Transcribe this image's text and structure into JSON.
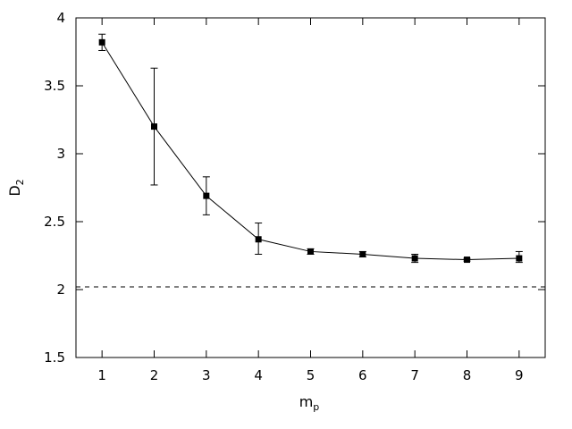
{
  "chart_data": {
    "type": "line",
    "xlabel": {
      "main": "m",
      "sub": "p"
    },
    "ylabel": {
      "main": "D",
      "sub": "2"
    },
    "xlim": [
      0.5,
      9.5
    ],
    "ylim": [
      1.5,
      4
    ],
    "x_ticks": [
      1,
      2,
      3,
      4,
      5,
      6,
      7,
      8,
      9
    ],
    "y_ticks": [
      1.5,
      2,
      2.5,
      3,
      3.5,
      4
    ],
    "y_tick_labels": [
      "1.5",
      "2",
      "2.5",
      "3",
      "3.5",
      "4"
    ],
    "grid": false,
    "marker": "square",
    "series": [
      {
        "x": [
          1,
          2,
          3,
          4,
          5,
          6,
          7,
          8,
          9
        ],
        "y": [
          3.82,
          3.2,
          2.69,
          2.37,
          2.28,
          2.26,
          2.23,
          2.22,
          2.23
        ],
        "yerr_low": [
          3.76,
          2.77,
          2.55,
          2.26,
          2.26,
          2.24,
          2.2,
          2.21,
          2.2
        ],
        "yerr_high": [
          3.88,
          3.63,
          2.83,
          2.49,
          2.3,
          2.28,
          2.26,
          2.23,
          2.28
        ],
        "color": "#000000"
      }
    ],
    "reference_line": {
      "y": 2.02,
      "style": "dashed",
      "color": "#000000"
    }
  }
}
